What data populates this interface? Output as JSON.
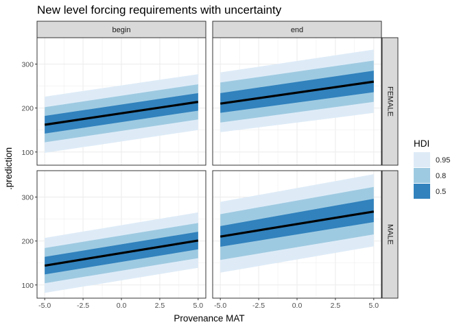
{
  "chart_data": {
    "type": "line",
    "title": "New level forcing requirements with uncertainty",
    "xlabel": "Provenance MAT",
    "ylabel": ".prediction",
    "xlim": [
      -5.5,
      5.5
    ],
    "ylim": [
      70,
      360
    ],
    "x_ticks": [
      -5,
      -2.5,
      0,
      2.5,
      5
    ],
    "x_tick_labels": [
      "-5.0",
      "-2.5",
      "0.0",
      "2.5",
      "5.0"
    ],
    "y_ticks": [
      100,
      200,
      300
    ],
    "y_tick_labels": [
      "100",
      "200",
      "300"
    ],
    "grid": true,
    "facet_columns": [
      "begin",
      "end"
    ],
    "facet_rows": [
      "FEMALE",
      "MALE"
    ],
    "legend": {
      "title": "HDI",
      "position": "right",
      "entries": [
        {
          "label": "0.95",
          "color": "#deebf7"
        },
        {
          "label": "0.8",
          "color": "#9ecae1"
        },
        {
          "label": "0.5",
          "color": "#3182bd"
        }
      ]
    },
    "line_color": "#000000",
    "panels": [
      {
        "column": "begin",
        "row": "FEMALE",
        "x": [
          -5,
          5
        ],
        "median": [
          162,
          214
        ],
        "hdi_0.5": {
          "lower": [
            142,
            194
          ],
          "upper": [
            182,
            234
          ]
        },
        "hdi_0.8": {
          "lower": [
            122,
            174
          ],
          "upper": [
            202,
            254
          ]
        },
        "hdi_0.95": {
          "lower": [
            98,
            150
          ],
          "upper": [
            226,
            277
          ]
        }
      },
      {
        "column": "end",
        "row": "FEMALE",
        "x": [
          -5,
          5
        ],
        "median": [
          210,
          260
        ],
        "hdi_0.5": {
          "lower": [
            189,
            236
          ],
          "upper": [
            234,
            285
          ]
        },
        "hdi_0.8": {
          "lower": [
            167,
            214
          ],
          "upper": [
            258,
            308
          ]
        },
        "hdi_0.95": {
          "lower": [
            145,
            189
          ],
          "upper": [
            281,
            333
          ]
        }
      },
      {
        "column": "begin",
        "row": "MALE",
        "x": [
          -5,
          5
        ],
        "median": [
          144,
          201
        ],
        "hdi_0.5": {
          "lower": [
            124,
            181
          ],
          "upper": [
            164,
            221
          ]
        },
        "hdi_0.8": {
          "lower": [
            104,
            161
          ],
          "upper": [
            184,
            241
          ]
        },
        "hdi_0.95": {
          "lower": [
            82,
            139
          ],
          "upper": [
            207,
            265
          ]
        }
      },
      {
        "column": "end",
        "row": "MALE",
        "x": [
          -5,
          5
        ],
        "median": [
          210,
          267
        ],
        "hdi_0.5": {
          "lower": [
            187,
            243
          ],
          "upper": [
            234,
            296
          ]
        },
        "hdi_0.8": {
          "lower": [
            157,
            215
          ],
          "upper": [
            261,
            323
          ]
        },
        "hdi_0.95": {
          "lower": [
            128,
            188
          ],
          "upper": [
            289,
            352
          ]
        }
      }
    ]
  }
}
